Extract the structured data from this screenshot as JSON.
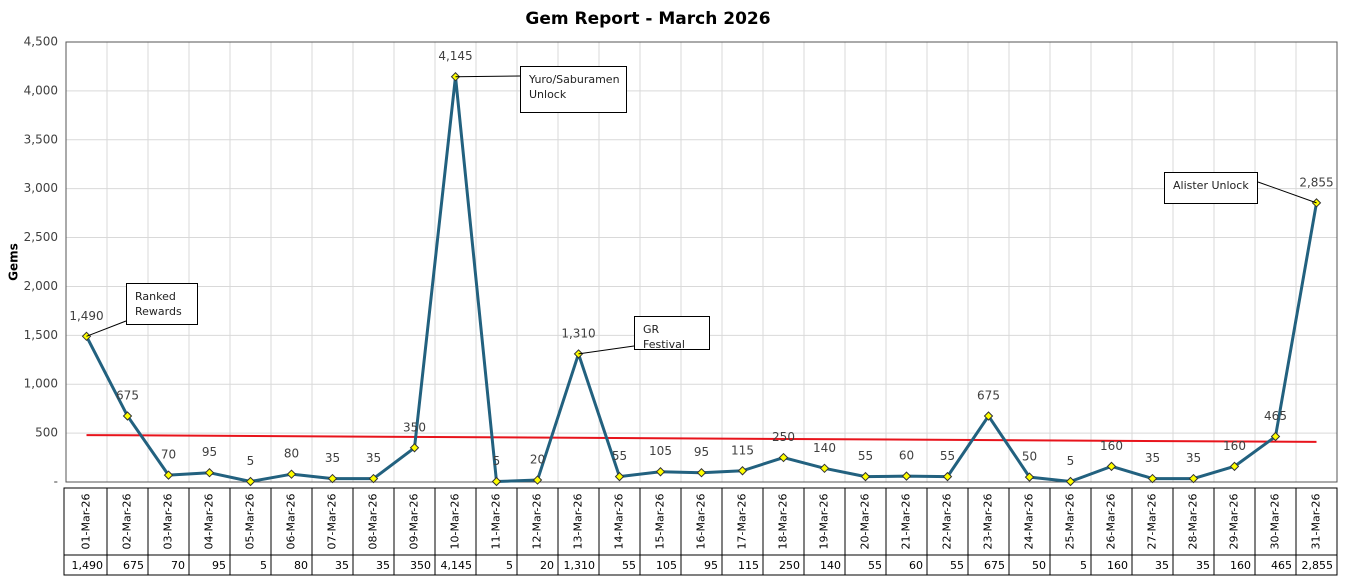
{
  "chart_data": {
    "type": "line",
    "title": "Gem Report - March 2026",
    "y_label": "Gems",
    "categories": [
      "01-Mar-26",
      "02-Mar-26",
      "03-Mar-26",
      "04-Mar-26",
      "05-Mar-26",
      "06-Mar-26",
      "07-Mar-26",
      "08-Mar-26",
      "09-Mar-26",
      "10-Mar-26",
      "11-Mar-26",
      "12-Mar-26",
      "13-Mar-26",
      "14-Mar-26",
      "15-Mar-26",
      "16-Mar-26",
      "17-Mar-26",
      "18-Mar-26",
      "19-Mar-26",
      "20-Mar-26",
      "21-Mar-26",
      "22-Mar-26",
      "23-Mar-26",
      "24-Mar-26",
      "25-Mar-26",
      "26-Mar-26",
      "27-Mar-26",
      "28-Mar-26",
      "29-Mar-26",
      "30-Mar-26",
      "31-Mar-26"
    ],
    "series": [
      {
        "color": "#22617f",
        "marker_color": "#ffff00",
        "values": [
          1490,
          675,
          70,
          95,
          5,
          80,
          35,
          35,
          350,
          4145,
          5,
          20,
          1310,
          55,
          105,
          95,
          115,
          250,
          140,
          55,
          60,
          55,
          675,
          50,
          5,
          160,
          35,
          35,
          160,
          465,
          2855
        ],
        "value_labels": [
          "1,490",
          "675",
          "70",
          "95",
          "5",
          "80",
          "35",
          "35",
          "350",
          "4,145",
          "5",
          "20",
          "1,310",
          "55",
          "105",
          "95",
          "115",
          "250",
          "140",
          "55",
          "60",
          "55",
          "675",
          "50",
          "5",
          "160",
          "35",
          "35",
          "160",
          "465",
          "2,855"
        ]
      }
    ],
    "trendline": {
      "color": "#e8141c",
      "values": [
        480,
        410
      ]
    },
    "ylim": [
      0,
      4500
    ],
    "yticks": [
      {
        "value": 0,
        "label": "-"
      },
      500,
      {
        "value": 1000,
        "label": "1,000"
      },
      {
        "value": 1500,
        "label": "1,500"
      },
      {
        "value": 2000,
        "label": "2,000"
      },
      {
        "value": 2500,
        "label": "2,500"
      },
      {
        "value": 3000,
        "label": "3,000"
      },
      {
        "value": 3500,
        "label": "3,500"
      },
      {
        "value": 4000,
        "label": "4,000"
      },
      {
        "value": 4500,
        "label": "4,500"
      }
    ],
    "grid": true,
    "annotations": [
      {
        "text": "Ranked Rewards",
        "point": 0
      },
      {
        "text": "Yuro/Saburamen Unlock",
        "point": 9
      },
      {
        "text": "GR Festival",
        "point": 12
      },
      {
        "text": "Alister Unlock",
        "point": 30
      }
    ]
  }
}
